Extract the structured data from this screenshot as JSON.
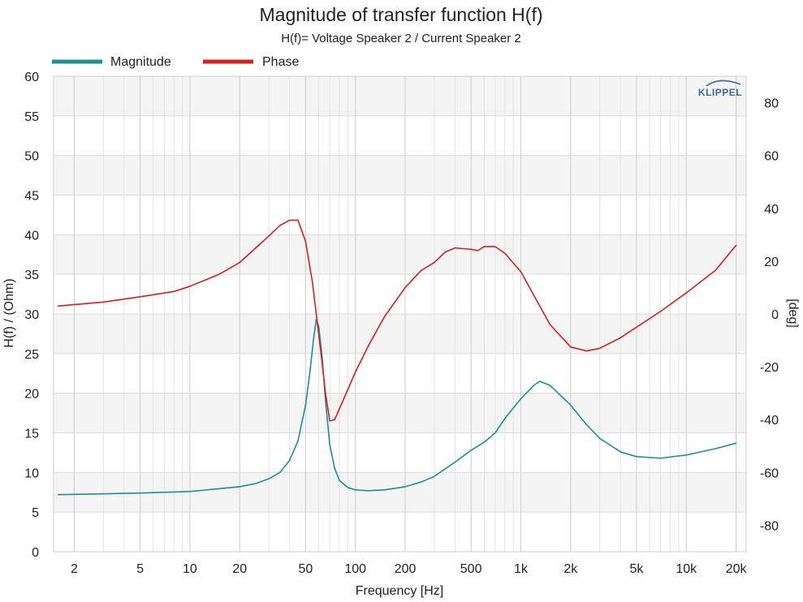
{
  "chart_data": {
    "type": "line",
    "title": "Magnitude of transfer function H(f)",
    "subtitle": "H(f)= Voltage Speaker 2 / Current Speaker 2",
    "xlabel": "Frequency [Hz]",
    "ylabel": "H(f) / (Ohm)",
    "y2label": "[deg]",
    "x_scale": "log",
    "xlim": [
      1.5,
      23000
    ],
    "ylim": [
      0,
      60
    ],
    "y2lim": [
      -90,
      90
    ],
    "x_ticks": [
      2,
      5,
      10,
      20,
      50,
      100,
      200,
      500,
      1000,
      2000,
      5000,
      10000,
      20000
    ],
    "x_tick_labels": [
      "2",
      "5",
      "10",
      "20",
      "50",
      "100",
      "200",
      "500",
      "1k",
      "2k",
      "5k",
      "10k",
      "20k"
    ],
    "y_ticks": [
      0,
      5,
      10,
      15,
      20,
      25,
      30,
      35,
      40,
      45,
      50,
      55,
      60
    ],
    "y_tick_labels": [
      "0",
      "5",
      "10",
      "15",
      "20",
      "25",
      "30",
      "35",
      "40",
      "45",
      "50",
      "55",
      "60"
    ],
    "y2_ticks": [
      -80,
      -60,
      -40,
      -20,
      0,
      20,
      40,
      60,
      80
    ],
    "y2_tick_labels": [
      "-80",
      "-60",
      "-40",
      "-20",
      "0",
      "20",
      "40",
      "60",
      "80"
    ],
    "grid": true,
    "legend_position": "top-left",
    "brand": "KLIPPEL",
    "series": [
      {
        "name": "Magnitude",
        "color": "#1f8f8f",
        "axis": "left",
        "points": [
          [
            1.6,
            7.2
          ],
          [
            3,
            7.3
          ],
          [
            5,
            7.4
          ],
          [
            10,
            7.6
          ],
          [
            20,
            8.2
          ],
          [
            25,
            8.6
          ],
          [
            30,
            9.2
          ],
          [
            35,
            10.0
          ],
          [
            40,
            11.5
          ],
          [
            45,
            14.0
          ],
          [
            50,
            18.5
          ],
          [
            53,
            22.5
          ],
          [
            56,
            27.0
          ],
          [
            58,
            29.3
          ],
          [
            60,
            28.5
          ],
          [
            63,
            24.5
          ],
          [
            66,
            19.0
          ],
          [
            70,
            13.5
          ],
          [
            75,
            10.5
          ],
          [
            80,
            9.0
          ],
          [
            90,
            8.1
          ],
          [
            100,
            7.8
          ],
          [
            120,
            7.7
          ],
          [
            150,
            7.8
          ],
          [
            200,
            8.2
          ],
          [
            250,
            8.8
          ],
          [
            300,
            9.5
          ],
          [
            400,
            11.3
          ],
          [
            500,
            12.8
          ],
          [
            600,
            13.8
          ],
          [
            700,
            15.0
          ],
          [
            800,
            16.8
          ],
          [
            1000,
            19.3
          ],
          [
            1200,
            21.0
          ],
          [
            1300,
            21.5
          ],
          [
            1500,
            21.0
          ],
          [
            2000,
            18.5
          ],
          [
            2500,
            16.0
          ],
          [
            3000,
            14.3
          ],
          [
            4000,
            12.6
          ],
          [
            5000,
            12.0
          ],
          [
            7000,
            11.8
          ],
          [
            10000,
            12.2
          ],
          [
            15000,
            13.0
          ],
          [
            20000,
            13.7
          ]
        ]
      },
      {
        "name": "Phase",
        "color": "#d42020",
        "axis": "right",
        "points": [
          [
            1.6,
            3.0
          ],
          [
            3,
            4.5
          ],
          [
            5,
            6.5
          ],
          [
            8,
            8.5
          ],
          [
            10,
            10.5
          ],
          [
            15,
            15.0
          ],
          [
            20,
            19.5
          ],
          [
            25,
            25.0
          ],
          [
            30,
            29.5
          ],
          [
            35,
            33.5
          ],
          [
            40,
            35.5
          ],
          [
            45,
            35.5
          ],
          [
            50,
            27.5
          ],
          [
            55,
            12.0
          ],
          [
            58,
            0.0
          ],
          [
            62,
            -15.0
          ],
          [
            66,
            -30.0
          ],
          [
            70,
            -40.5
          ],
          [
            75,
            -40.0
          ],
          [
            80,
            -36.0
          ],
          [
            100,
            -22.0
          ],
          [
            120,
            -12.0
          ],
          [
            150,
            -1.0
          ],
          [
            200,
            10.0
          ],
          [
            250,
            16.5
          ],
          [
            300,
            19.5
          ],
          [
            350,
            23.5
          ],
          [
            400,
            25.0
          ],
          [
            500,
            24.5
          ],
          [
            550,
            24.0
          ],
          [
            600,
            25.5
          ],
          [
            700,
            25.5
          ],
          [
            800,
            23.0
          ],
          [
            1000,
            16.0
          ],
          [
            1200,
            7.0
          ],
          [
            1500,
            -4.0
          ],
          [
            2000,
            -12.5
          ],
          [
            2500,
            -14.0
          ],
          [
            3000,
            -13.0
          ],
          [
            4000,
            -9.0
          ],
          [
            5000,
            -5.0
          ],
          [
            7000,
            1.0
          ],
          [
            10000,
            8.0
          ],
          [
            15000,
            16.5
          ],
          [
            20000,
            26.0
          ]
        ]
      }
    ]
  }
}
